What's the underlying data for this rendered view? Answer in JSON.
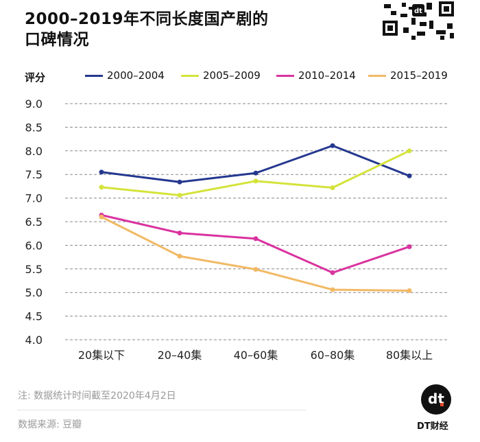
{
  "title_line1": "2000–2019年不同长度国产剧的",
  "title_line2": "口碑情况",
  "brand": "DT财经",
  "logo_text": "dt",
  "footer": {
    "note": "注: 数据统计时间截至2020年4月2日",
    "source": "数据来源: 豆瓣"
  },
  "chart_data": {
    "type": "line",
    "ylabel": "评分",
    "ylim": [
      4.0,
      9.0
    ],
    "yticks": [
      "4.0",
      "4.5",
      "5.0",
      "5.5",
      "6.0",
      "6.5",
      "7.0",
      "7.5",
      "8.0",
      "8.5",
      "9.0"
    ],
    "grid": true,
    "legend_position": "top",
    "categories": [
      "20集以下",
      "20–40集",
      "40–60集",
      "60–80集",
      "80集以上"
    ],
    "series": [
      {
        "name": "2000–2004",
        "color": "#24388f",
        "values": [
          7.55,
          7.34,
          7.53,
          8.11,
          7.47
        ]
      },
      {
        "name": "2005–2009",
        "color": "#d4e33a",
        "values": [
          7.23,
          7.06,
          7.36,
          7.22,
          8.0
        ]
      },
      {
        "name": "2010–2014",
        "color": "#d9339f",
        "values": [
          6.64,
          6.26,
          6.14,
          5.42,
          5.97
        ]
      },
      {
        "name": "2015–2019",
        "color": "#f2b965",
        "values": [
          6.6,
          5.77,
          5.49,
          5.06,
          5.04
        ]
      }
    ]
  }
}
